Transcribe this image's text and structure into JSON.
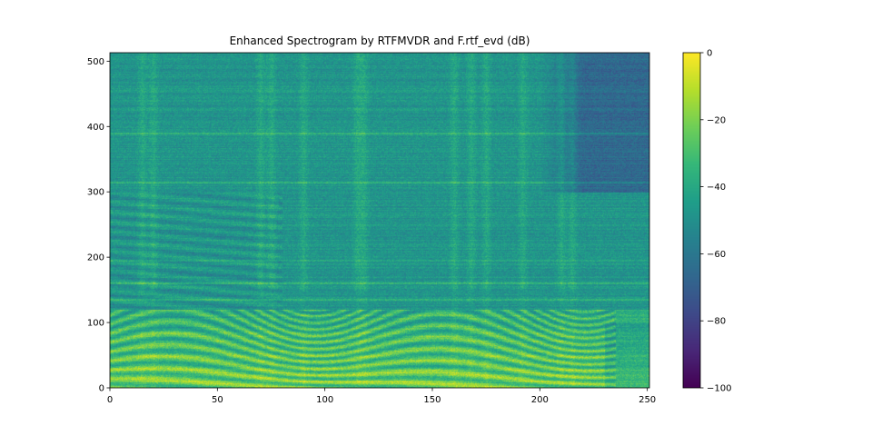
{
  "chart_data": {
    "type": "heatmap",
    "title": "Enhanced Spectrogram by RTFMVDR and F.rtf_evd (dB)",
    "xlabel": "",
    "ylabel": "",
    "xlim": [
      0,
      251
    ],
    "ylim": [
      0,
      513
    ],
    "x_ticks": [
      "0",
      "50",
      "100",
      "150",
      "200",
      "250"
    ],
    "y_ticks": [
      "0",
      "100",
      "200",
      "300",
      "400",
      "500"
    ],
    "colormap": "viridis",
    "colorbar": {
      "range": [
        -100,
        0
      ],
      "ticks": [
        "0",
        "−20",
        "−40",
        "−60",
        "−80",
        "−100"
      ]
    },
    "grid": false
  }
}
